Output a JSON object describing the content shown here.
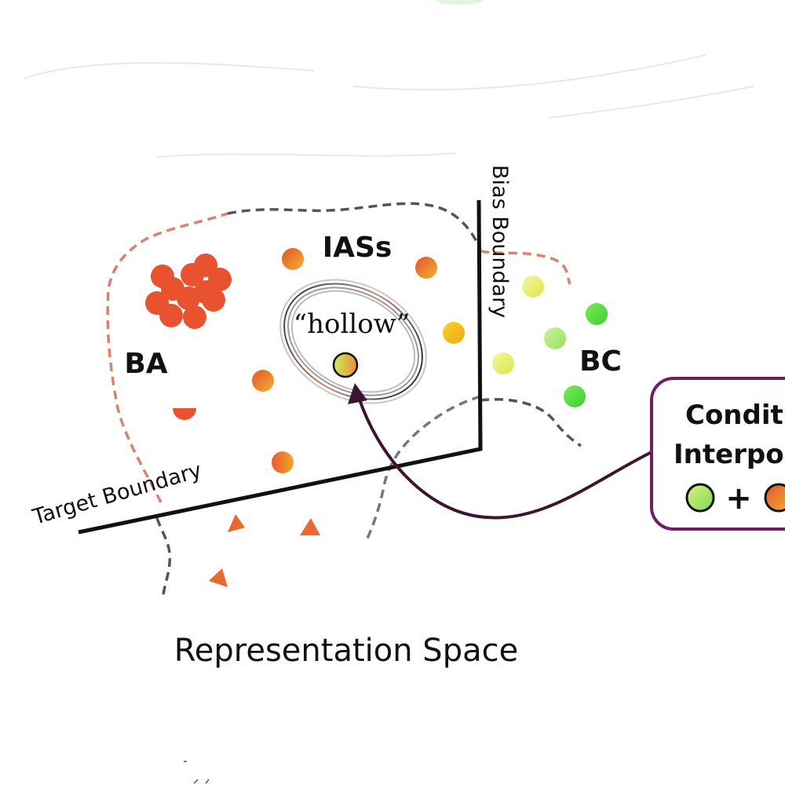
{
  "labels": {
    "iass": "IASs",
    "hollow": "“hollow”",
    "ba": "BA",
    "bc": "BC",
    "target_boundary": "Target Boundary",
    "bias_boundary": "Bias Boundary",
    "representation_space": "Representation Space"
  },
  "callout": {
    "line1": "Condit",
    "line2": "Interpo",
    "plus": "+"
  },
  "colors": {
    "ba_red": "#e8522e",
    "iass_orange": "#e9862f",
    "iass_yellow": "#f2c21a",
    "bc_yellow": "#e9f27a",
    "bc_green": "#55d93a",
    "arrow": "#3d1530",
    "callout_border": "#6e1e63",
    "boundary_dash_red": "#d98270",
    "boundary_dash_gray": "#555555"
  }
}
